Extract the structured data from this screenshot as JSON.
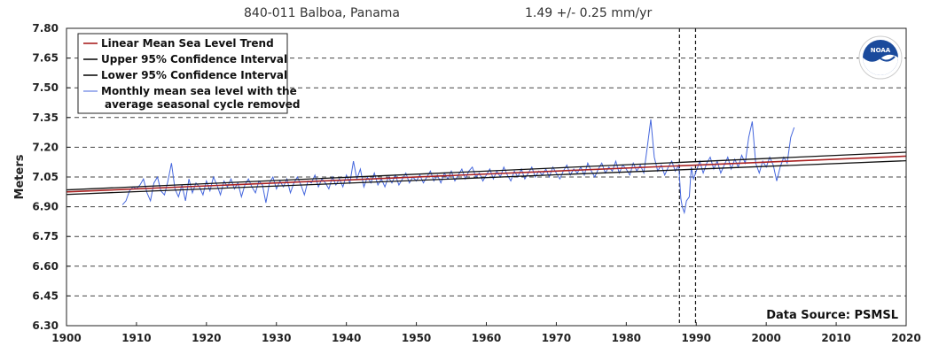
{
  "header": {
    "station": "840-011 Balboa, Panama",
    "trend": "1.49 +/-  0.25 mm/yr"
  },
  "source_note": "Data Source: PSMSL",
  "logo": {
    "icon": "noaa-logo-icon",
    "text": "NOAA"
  },
  "colors": {
    "trend": "#aa2222",
    "confidence": "#111111",
    "monthly": "#4466dd",
    "grid": "#444444"
  },
  "chart_data": {
    "type": "line",
    "title": "840-011 Balboa, Panama",
    "subtitle": "1.49 +/-  0.25 mm/yr",
    "xlabel": "",
    "ylabel": "Meters",
    "xlim": [
      1900,
      2020
    ],
    "ylim": [
      6.3,
      7.8
    ],
    "x_ticks": [
      1900,
      1910,
      1920,
      1930,
      1940,
      1950,
      1960,
      1970,
      1980,
      1990,
      2000,
      2010,
      2020
    ],
    "y_ticks": [
      "6.30",
      "6.45",
      "6.60",
      "6.75",
      "6.90",
      "7.05",
      "7.20",
      "7.35",
      "7.50",
      "7.65",
      "7.80"
    ],
    "grid": "horizontal dashed",
    "legend_position": "top-left",
    "vertical_markers": [
      1987.6,
      1989.9
    ],
    "series": [
      {
        "name": "Linear Mean Sea Level Trend",
        "kind": "line",
        "points": [
          [
            1900,
            6.975
          ],
          [
            2020,
            7.155
          ]
        ]
      },
      {
        "name": "Upper 95% Confidence Interval",
        "kind": "line",
        "points": [
          [
            1900,
            6.985
          ],
          [
            2020,
            7.175
          ]
        ]
      },
      {
        "name": "Lower 95% Confidence Interval",
        "kind": "line",
        "points": [
          [
            1900,
            6.962
          ],
          [
            2020,
            7.132
          ]
        ]
      },
      {
        "name": "Monthly mean sea level with the\naverage seasonal cycle removed",
        "kind": "monthly",
        "points": [
          [
            1908.0,
            6.91
          ],
          [
            1908.5,
            6.93
          ],
          [
            1909.0,
            6.98
          ],
          [
            1909.5,
            7.0
          ],
          [
            1910.0,
            6.99
          ],
          [
            1910.5,
            7.01
          ],
          [
            1911.0,
            7.04
          ],
          [
            1911.5,
            6.97
          ],
          [
            1912.0,
            6.93
          ],
          [
            1912.5,
            7.02
          ],
          [
            1913.0,
            7.05
          ],
          [
            1913.5,
            6.98
          ],
          [
            1914.0,
            6.96
          ],
          [
            1914.5,
            7.03
          ],
          [
            1915.0,
            7.12
          ],
          [
            1915.5,
            6.99
          ],
          [
            1916.0,
            6.95
          ],
          [
            1916.5,
            7.01
          ],
          [
            1917.0,
            6.93
          ],
          [
            1917.5,
            7.04
          ],
          [
            1918.0,
            6.97
          ],
          [
            1918.5,
            7.02
          ],
          [
            1919.0,
            7.0
          ],
          [
            1919.5,
            6.96
          ],
          [
            1920.0,
            7.03
          ],
          [
            1920.5,
            6.98
          ],
          [
            1921.0,
            7.05
          ],
          [
            1921.5,
            7.01
          ],
          [
            1922.0,
            6.96
          ],
          [
            1922.5,
            7.03
          ],
          [
            1923.0,
            7.0
          ],
          [
            1923.5,
            7.04
          ],
          [
            1924.0,
            6.99
          ],
          [
            1924.5,
            7.02
          ],
          [
            1925.0,
            6.95
          ],
          [
            1925.5,
            7.01
          ],
          [
            1926.0,
            7.04
          ],
          [
            1926.5,
            7.0
          ],
          [
            1927.0,
            6.97
          ],
          [
            1927.5,
            7.03
          ],
          [
            1928.0,
            7.01
          ],
          [
            1928.5,
            6.92
          ],
          [
            1929.0,
            7.02
          ],
          [
            1929.5,
            7.05
          ],
          [
            1930.0,
            6.99
          ],
          [
            1930.5,
            7.03
          ],
          [
            1931.0,
            7.0
          ],
          [
            1931.5,
            7.04
          ],
          [
            1932.0,
            6.97
          ],
          [
            1932.5,
            7.02
          ],
          [
            1933.0,
            7.05
          ],
          [
            1933.5,
            7.01
          ],
          [
            1934.0,
            6.96
          ],
          [
            1934.5,
            7.03
          ],
          [
            1935.0,
            7.02
          ],
          [
            1935.5,
            7.06
          ],
          [
            1936.0,
            7.0
          ],
          [
            1936.5,
            7.04
          ],
          [
            1937.0,
            7.02
          ],
          [
            1937.5,
            6.99
          ],
          [
            1938.0,
            7.05
          ],
          [
            1938.5,
            7.01
          ],
          [
            1939.0,
            7.04
          ],
          [
            1939.5,
            7.0
          ],
          [
            1940.0,
            7.06
          ],
          [
            1940.5,
            7.02
          ],
          [
            1941.0,
            7.13
          ],
          [
            1941.5,
            7.04
          ],
          [
            1942.0,
            7.09
          ],
          [
            1942.5,
            7.0
          ],
          [
            1943.0,
            7.05
          ],
          [
            1943.5,
            7.02
          ],
          [
            1944.0,
            7.07
          ],
          [
            1944.5,
            7.01
          ],
          [
            1945.0,
            7.04
          ],
          [
            1945.5,
            7.0
          ],
          [
            1946.0,
            7.05
          ],
          [
            1946.5,
            7.02
          ],
          [
            1947.0,
            7.06
          ],
          [
            1947.5,
            7.01
          ],
          [
            1948.0,
            7.04
          ],
          [
            1948.5,
            7.07
          ],
          [
            1949.0,
            7.02
          ],
          [
            1949.5,
            7.05
          ],
          [
            1950.0,
            7.03
          ],
          [
            1950.5,
            7.06
          ],
          [
            1951.0,
            7.02
          ],
          [
            1951.5,
            7.05
          ],
          [
            1952.0,
            7.08
          ],
          [
            1952.5,
            7.03
          ],
          [
            1953.0,
            7.06
          ],
          [
            1953.5,
            7.02
          ],
          [
            1954.0,
            7.07
          ],
          [
            1954.5,
            7.04
          ],
          [
            1955.0,
            7.08
          ],
          [
            1955.5,
            7.03
          ],
          [
            1956.0,
            7.06
          ],
          [
            1956.5,
            7.09
          ],
          [
            1957.0,
            7.04
          ],
          [
            1957.5,
            7.08
          ],
          [
            1958.0,
            7.1
          ],
          [
            1958.5,
            7.05
          ],
          [
            1959.0,
            7.07
          ],
          [
            1959.5,
            7.03
          ],
          [
            1960.0,
            7.06
          ],
          [
            1960.5,
            7.09
          ],
          [
            1961.0,
            7.04
          ],
          [
            1961.5,
            7.08
          ],
          [
            1962.0,
            7.05
          ],
          [
            1962.5,
            7.1
          ],
          [
            1963.0,
            7.06
          ],
          [
            1963.5,
            7.03
          ],
          [
            1964.0,
            7.08
          ],
          [
            1964.5,
            7.05
          ],
          [
            1965.0,
            7.09
          ],
          [
            1965.5,
            7.04
          ],
          [
            1966.0,
            7.07
          ],
          [
            1966.5,
            7.1
          ],
          [
            1967.0,
            7.05
          ],
          [
            1967.5,
            7.08
          ],
          [
            1968.0,
            7.06
          ],
          [
            1968.5,
            7.09
          ],
          [
            1969.0,
            7.05
          ],
          [
            1969.5,
            7.1
          ],
          [
            1970.0,
            7.07
          ],
          [
            1970.5,
            7.04
          ],
          [
            1971.0,
            7.08
          ],
          [
            1971.5,
            7.11
          ],
          [
            1972.0,
            7.06
          ],
          [
            1972.5,
            7.09
          ],
          [
            1973.0,
            7.07
          ],
          [
            1973.5,
            7.1
          ],
          [
            1974.0,
            7.06
          ],
          [
            1974.5,
            7.12
          ],
          [
            1975.0,
            7.08
          ],
          [
            1975.5,
            7.05
          ],
          [
            1976.0,
            7.09
          ],
          [
            1976.5,
            7.12
          ],
          [
            1977.0,
            7.07
          ],
          [
            1977.5,
            7.1
          ],
          [
            1978.0,
            7.08
          ],
          [
            1978.5,
            7.13
          ],
          [
            1979.0,
            7.07
          ],
          [
            1979.5,
            7.11
          ],
          [
            1980.0,
            7.09
          ],
          [
            1980.5,
            7.06
          ],
          [
            1981.0,
            7.12
          ],
          [
            1981.5,
            7.08
          ],
          [
            1982.0,
            7.11
          ],
          [
            1982.5,
            7.07
          ],
          [
            1983.0,
            7.2
          ],
          [
            1983.5,
            7.34
          ],
          [
            1984.0,
            7.15
          ],
          [
            1984.5,
            7.08
          ],
          [
            1985.0,
            7.11
          ],
          [
            1985.5,
            7.06
          ],
          [
            1986.0,
            7.1
          ],
          [
            1986.5,
            7.13
          ],
          [
            1987.0,
            7.08
          ],
          [
            1987.5,
            7.11
          ],
          [
            1987.8,
            6.94
          ],
          [
            1988.0,
            6.9
          ],
          [
            1988.3,
            6.87
          ],
          [
            1988.6,
            6.93
          ],
          [
            1989.0,
            6.95
          ],
          [
            1989.3,
            7.1
          ],
          [
            1989.6,
            7.04
          ],
          [
            1990.0,
            7.08
          ],
          [
            1990.5,
            7.13
          ],
          [
            1991.0,
            7.07
          ],
          [
            1991.5,
            7.12
          ],
          [
            1992.0,
            7.15
          ],
          [
            1992.5,
            7.09
          ],
          [
            1993.0,
            7.13
          ],
          [
            1993.5,
            7.07
          ],
          [
            1994.0,
            7.11
          ],
          [
            1994.5,
            7.15
          ],
          [
            1995.0,
            7.09
          ],
          [
            1995.5,
            7.14
          ],
          [
            1996.0,
            7.1
          ],
          [
            1996.5,
            7.16
          ],
          [
            1997.0,
            7.12
          ],
          [
            1997.5,
            7.25
          ],
          [
            1998.0,
            7.33
          ],
          [
            1998.5,
            7.12
          ],
          [
            1999.0,
            7.07
          ],
          [
            1999.5,
            7.13
          ],
          [
            2000.0,
            7.1
          ],
          [
            2000.5,
            7.15
          ],
          [
            2001.0,
            7.11
          ],
          [
            2001.5,
            7.03
          ],
          [
            2002.0,
            7.1
          ],
          [
            2002.5,
            7.15
          ],
          [
            2003.0,
            7.12
          ],
          [
            2003.5,
            7.25
          ],
          [
            2004.0,
            7.3
          ]
        ]
      }
    ]
  }
}
